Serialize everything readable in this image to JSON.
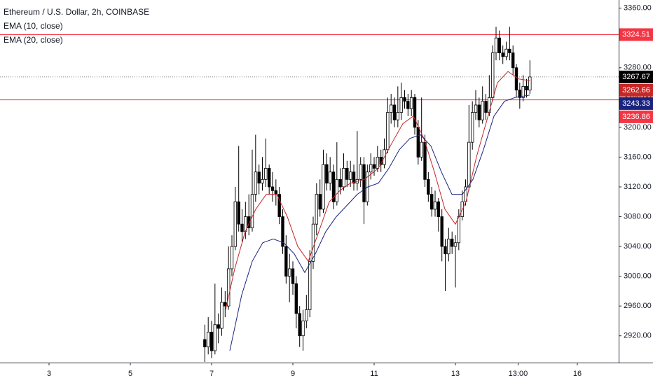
{
  "chart_data": {
    "type": "candlestick",
    "title": "Ethereum / U.S. Dollar, 2h, COINBASE",
    "up_color": "#ffffff",
    "down_color": "#000000",
    "border_color": "#000000",
    "last_price_color": "#000000",
    "x": [
      6.833,
      6.917,
      7,
      7.083,
      7.167,
      7.25,
      7.333,
      7.417,
      7.5,
      7.583,
      7.667,
      7.75,
      7.833,
      7.917,
      8,
      8.083,
      8.167,
      8.25,
      8.333,
      8.417,
      8.5,
      8.583,
      8.667,
      8.75,
      8.833,
      8.917,
      9,
      9.083,
      9.167,
      9.25,
      9.333,
      9.417,
      9.5,
      9.583,
      9.667,
      9.75,
      9.833,
      9.917,
      10,
      10.083,
      10.167,
      10.25,
      10.333,
      10.417,
      10.5,
      10.583,
      10.667,
      10.75,
      10.833,
      10.917,
      11,
      11.083,
      11.167,
      11.25,
      11.333,
      11.417,
      11.5,
      11.583,
      11.667,
      11.75,
      11.833,
      11.917,
      12,
      12.083,
      12.167,
      12.25,
      12.333,
      12.417,
      12.5,
      12.583,
      12.667,
      12.75,
      12.833,
      12.917,
      13,
      13.083,
      13.167,
      13.25,
      13.333,
      13.417,
      13.5,
      13.583,
      13.667,
      13.75,
      13.833,
      13.917,
      14,
      14.083,
      14.167,
      14.25,
      14.333,
      14.417,
      14.5,
      14.583,
      14.667,
      14.75,
      14.833
    ],
    "open": [
      2915,
      2905,
      2925,
      2900,
      2935,
      2930,
      2965,
      2960,
      3010,
      3040,
      3100,
      3070,
      3060,
      3080,
      3065,
      3110,
      3140,
      3125,
      3130,
      3145,
      3120,
      3115,
      3110,
      3080,
      3040,
      3000,
      3010,
      2990,
      2950,
      2920,
      2940,
      2955,
      3020,
      3070,
      3110,
      3090,
      3150,
      3125,
      3140,
      3100,
      3130,
      3120,
      3145,
      3130,
      3140,
      3125,
      3130,
      3150,
      3100,
      3140,
      3150,
      3145,
      3160,
      3150,
      3170,
      3220,
      3230,
      3210,
      3220,
      3240,
      3235,
      3225,
      3240,
      3200,
      3160,
      3180,
      3130,
      3110,
      3090,
      3100,
      3080,
      3040,
      3030,
      3050,
      3040,
      3045,
      3080,
      3100,
      3120,
      3180,
      3220,
      3230,
      3210,
      3235,
      3220,
      3240,
      3300,
      3320,
      3300,
      3295,
      3305,
      3300,
      3280,
      3250,
      3240,
      3255,
      3250
    ],
    "high": [
      2935,
      2945,
      2940,
      2990,
      2950,
      2985,
      2980,
      3040,
      3055,
      3120,
      3175,
      3090,
      3100,
      3110,
      3170,
      3190,
      3150,
      3160,
      3185,
      3150,
      3140,
      3130,
      3120,
      3090,
      3055,
      3030,
      3020,
      3000,
      2960,
      2955,
      2975,
      3035,
      3080,
      3125,
      3130,
      3170,
      3165,
      3160,
      3150,
      3180,
      3145,
      3165,
      3155,
      3155,
      3150,
      3195,
      3160,
      3160,
      3150,
      3165,
      3160,
      3175,
      3170,
      3185,
      3240,
      3245,
      3240,
      3255,
      3260,
      3250,
      3245,
      3250,
      3245,
      3210,
      3240,
      3190,
      3140,
      3120,
      3115,
      3105,
      3090,
      3050,
      3065,
      3060,
      3055,
      3090,
      3115,
      3130,
      3230,
      3235,
      3250,
      3240,
      3255,
      3245,
      3270,
      3310,
      3335,
      3330,
      3310,
      3315,
      3335,
      3310,
      3285,
      3260,
      3270,
      3265,
      3290
    ],
    "low": [
      2885,
      2895,
      2890,
      2895,
      2910,
      2920,
      2945,
      2955,
      3000,
      3035,
      3060,
      3045,
      3050,
      3055,
      3060,
      3100,
      3110,
      3115,
      3120,
      3110,
      3100,
      3095,
      3070,
      3030,
      2990,
      2965,
      2975,
      2930,
      2905,
      2900,
      2930,
      2945,
      3010,
      3055,
      3080,
      3085,
      3115,
      3115,
      3090,
      3095,
      3110,
      3115,
      3120,
      3120,
      3115,
      3115,
      3120,
      3070,
      3095,
      3130,
      3135,
      3140,
      3140,
      3145,
      3165,
      3205,
      3200,
      3200,
      3210,
      3225,
      3215,
      3215,
      3190,
      3150,
      3155,
      3120,
      3100,
      3080,
      3080,
      3060,
      3020,
      2980,
      3020,
      3030,
      2985,
      3035,
      3075,
      3095,
      3115,
      3170,
      3210,
      3200,
      3205,
      3210,
      3215,
      3235,
      3290,
      3290,
      3285,
      3290,
      3290,
      3270,
      3240,
      3225,
      3235,
      3240,
      3245
    ],
    "close": [
      2905,
      2925,
      2900,
      2935,
      2930,
      2965,
      2960,
      3010,
      3040,
      3100,
      3070,
      3060,
      3080,
      3065,
      3110,
      3140,
      3125,
      3130,
      3145,
      3120,
      3115,
      3110,
      3080,
      3040,
      3000,
      3010,
      2990,
      2950,
      2920,
      2940,
      2955,
      3020,
      3070,
      3110,
      3090,
      3150,
      3125,
      3140,
      3100,
      3130,
      3120,
      3145,
      3130,
      3140,
      3125,
      3130,
      3150,
      3100,
      3140,
      3150,
      3145,
      3160,
      3150,
      3170,
      3220,
      3230,
      3210,
      3220,
      3240,
      3235,
      3225,
      3240,
      3200,
      3160,
      3180,
      3130,
      3110,
      3090,
      3100,
      3080,
      3040,
      3030,
      3050,
      3040,
      3045,
      3080,
      3100,
      3120,
      3180,
      3220,
      3230,
      3210,
      3235,
      3220,
      3240,
      3300,
      3320,
      3300,
      3295,
      3305,
      3300,
      3280,
      3250,
      3240,
      3255,
      3250,
      3267.67
    ],
    "series": [
      {
        "name": "EMA (10, close)",
        "color": "#c62828",
        "x": [
          7.345,
          7.569,
          7.828,
          8.086,
          8.345,
          8.603,
          8.862,
          9.121,
          9.379,
          9.638,
          9.897,
          10.155,
          10.414,
          10.759,
          11.103,
          11.448,
          11.707,
          11.966,
          12.224,
          12.483,
          12.741,
          13,
          13.259,
          13.517,
          13.776,
          14.034,
          14.293,
          14.552,
          14.833
        ],
        "values": [
          2955,
          3010,
          3060,
          3090,
          3110,
          3110,
          3080,
          3040,
          3020,
          3060,
          3100,
          3115,
          3125,
          3130,
          3145,
          3180,
          3205,
          3215,
          3185,
          3140,
          3090,
          3070,
          3100,
          3160,
          3210,
          3260,
          3275,
          3265,
          3262.66
        ]
      },
      {
        "name": "EMA (20, close)",
        "color": "#1a237e",
        "x": [
          7.448,
          7.741,
          8,
          8.259,
          8.517,
          8.776,
          9.034,
          9.293,
          9.552,
          9.81,
          10.069,
          10.328,
          10.586,
          10.845,
          11.103,
          11.362,
          11.621,
          11.879,
          12.138,
          12.397,
          12.655,
          12.914,
          13.172,
          13.431,
          13.69,
          13.948,
          14.207,
          14.466,
          14.833
        ],
        "values": [
          2900,
          2975,
          3020,
          3045,
          3050,
          3045,
          3030,
          3005,
          3030,
          3060,
          3080,
          3095,
          3110,
          3120,
          3125,
          3145,
          3170,
          3185,
          3190,
          3175,
          3140,
          3110,
          3110,
          3130,
          3170,
          3215,
          3235,
          3240,
          3243.33
        ]
      }
    ],
    "hlines": [
      {
        "value": 3324.51,
        "color": "#f23645"
      },
      {
        "value": 3236.86,
        "color": "#f23645"
      }
    ],
    "xlim": [
      1.793,
      17.017
    ],
    "ylim": [
      2884,
      3371
    ],
    "xticks": [
      3,
      5,
      7,
      9,
      11,
      13,
      {
        "value": 14.542,
        "label": "13:00"
      },
      16
    ],
    "yticks": [
      {
        "value": 2920,
        "label": "2920.00"
      },
      {
        "value": 2960,
        "label": "2960.00"
      },
      {
        "value": 3000,
        "label": "3000.00"
      },
      {
        "value": 3040,
        "label": "3040.00"
      },
      {
        "value": 3080,
        "label": "3080.00"
      },
      {
        "value": 3120,
        "label": "3120.00"
      },
      {
        "value": 3160,
        "label": "3160.00"
      },
      {
        "value": 3200,
        "label": "3200.00"
      },
      {
        "value": 3240,
        "label": "3240.00"
      },
      {
        "value": 3280,
        "label": "3280.00"
      },
      {
        "value": 3320,
        "label": "3320.00"
      },
      {
        "value": 3360,
        "label": "3360.00"
      }
    ],
    "grid": false
  }
}
